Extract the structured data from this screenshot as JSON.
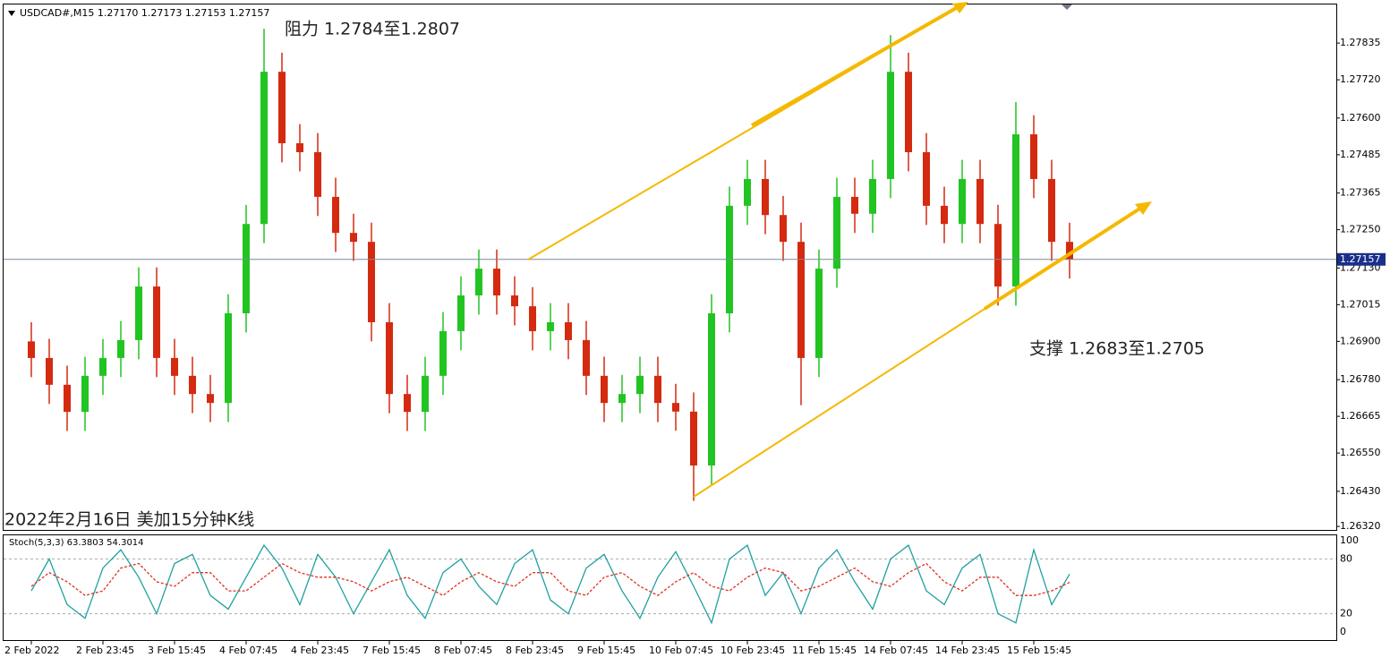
{
  "chart_data": [
    {
      "type": "candlestick",
      "title": "USDCAD#,M15  1.27170 1.27173 1.27153 1.27157",
      "annotations": [
        "阻力 1.2784至1.2807",
        "支撑 1.2683至1.2705",
        "2022年2月16日 美加15分钟K线"
      ],
      "up_color": "#22c422",
      "down_color": "#d42a10",
      "current_price": {
        "value": 1.27157,
        "label": "1.27157"
      },
      "categories": [
        "2 Feb 2022",
        null,
        null,
        null,
        "2 Feb 23:45",
        null,
        null,
        null,
        "3 Feb 15:45",
        null,
        null,
        null,
        "4 Feb 07:45",
        null,
        null,
        null,
        "4 Feb 23:45",
        null,
        null,
        null,
        "7 Feb 15:45",
        null,
        null,
        null,
        "8 Feb 07:45",
        null,
        null,
        null,
        "8 Feb 23:45",
        null,
        null,
        null,
        "9 Feb 15:45",
        null,
        null,
        null,
        "10 Feb 07:45",
        null,
        null,
        null,
        "10 Feb 23:45",
        null,
        null,
        null,
        "11 Feb 15:45",
        null,
        null,
        null,
        "14 Feb 07:45",
        null,
        null,
        null,
        "14 Feb 23:45",
        null,
        null,
        null,
        "15 Feb 15:45",
        null,
        null
      ],
      "open": [
        1.269,
        1.26848,
        1.26764,
        1.26679,
        1.26792,
        1.26848,
        1.26904,
        1.27072,
        1.26848,
        1.26792,
        1.26735,
        1.26707,
        1.26988,
        1.27268,
        1.27745,
        1.27521,
        1.27493,
        1.27353,
        1.2724,
        1.27212,
        1.2696,
        1.26735,
        1.26679,
        1.26792,
        1.26932,
        1.27044,
        1.27128,
        1.27044,
        1.2701,
        1.26932,
        1.2696,
        1.26904,
        1.26792,
        1.26707,
        1.26735,
        1.26792,
        1.26707,
        1.2668,
        1.26511,
        1.26988,
        1.27325,
        1.27409,
        1.27296,
        1.27212,
        1.26848,
        1.27128,
        1.27353,
        1.273,
        1.27409,
        1.27745,
        1.27493,
        1.27325,
        1.27268,
        1.27409,
        1.27268,
        1.27072,
        1.27549,
        1.27409,
        1.27212
      ],
      "high": [
        1.2696,
        1.26908,
        1.26824,
        1.26852,
        1.26908,
        1.26964,
        1.27132,
        1.27132,
        1.26908,
        1.26852,
        1.26795,
        1.27048,
        1.27328,
        1.2788,
        1.27805,
        1.27581,
        1.27553,
        1.27413,
        1.273,
        1.27272,
        1.2702,
        1.26795,
        1.26852,
        1.26992,
        1.27104,
        1.27188,
        1.27188,
        1.27104,
        1.2707,
        1.2702,
        1.2702,
        1.26964,
        1.26852,
        1.26795,
        1.26852,
        1.26852,
        1.26767,
        1.2674,
        1.27048,
        1.27385,
        1.27469,
        1.27469,
        1.27356,
        1.27272,
        1.27188,
        1.27413,
        1.27413,
        1.27469,
        1.2786,
        1.27805,
        1.27553,
        1.27385,
        1.27469,
        1.27469,
        1.27328,
        1.2765,
        1.27609,
        1.27469,
        1.27272
      ],
      "low": [
        1.26788,
        1.26704,
        1.26619,
        1.26619,
        1.26732,
        1.26788,
        1.26844,
        1.26788,
        1.26732,
        1.26675,
        1.26647,
        1.26647,
        1.26928,
        1.27208,
        1.27461,
        1.27433,
        1.27293,
        1.2718,
        1.27152,
        1.269,
        1.26675,
        1.26619,
        1.26619,
        1.26732,
        1.26872,
        1.26984,
        1.26984,
        1.2695,
        1.26872,
        1.26872,
        1.26844,
        1.26732,
        1.26647,
        1.26647,
        1.26675,
        1.26647,
        1.2662,
        1.264,
        1.26451,
        1.26928,
        1.27265,
        1.27236,
        1.27152,
        1.267,
        1.26788,
        1.27068,
        1.2724,
        1.2724,
        1.27349,
        1.27433,
        1.27265,
        1.27208,
        1.27208,
        1.27208,
        1.27012,
        1.27012,
        1.27349,
        1.27152,
        1.27097
      ],
      "close": [
        1.26848,
        1.26764,
        1.26679,
        1.26792,
        1.26848,
        1.26904,
        1.27072,
        1.26848,
        1.26792,
        1.26735,
        1.26707,
        1.26988,
        1.27268,
        1.27745,
        1.27521,
        1.27493,
        1.27353,
        1.2724,
        1.27212,
        1.2696,
        1.26735,
        1.26679,
        1.26792,
        1.26932,
        1.27044,
        1.27128,
        1.27044,
        1.2701,
        1.26932,
        1.2696,
        1.26904,
        1.26792,
        1.26707,
        1.26735,
        1.26792,
        1.26707,
        1.2668,
        1.26511,
        1.26988,
        1.27325,
        1.27409,
        1.27296,
        1.27212,
        1.26848,
        1.27128,
        1.27353,
        1.273,
        1.27409,
        1.27745,
        1.27493,
        1.27325,
        1.27268,
        1.27409,
        1.27268,
        1.27072,
        1.27549,
        1.27409,
        1.27212,
        1.27157
      ],
      "ylim": [
        1.26309,
        1.27956
      ],
      "yticks": [
        1.27835,
        {
          "value": 1.2772,
          "label": "1.27720"
        },
        {
          "value": 1.276,
          "label": "1.27600"
        },
        1.27485,
        1.27365,
        {
          "value": 1.2725,
          "label": "1.27250"
        },
        {
          "value": 1.2713,
          "label": "1.27130"
        },
        1.27015,
        {
          "value": 1.269,
          "label": "1.26900"
        },
        {
          "value": 1.2678,
          "label": "1.26780"
        },
        1.26665,
        {
          "value": 1.2655,
          "label": "1.26550"
        },
        {
          "value": 1.2643,
          "label": "1.26430"
        },
        {
          "value": 1.2632,
          "label": "1.26320"
        }
      ]
    },
    {
      "type": "line",
      "title": "Stoch(5,3,3) 63.3803 54.3014",
      "series": [
        {
          "color": "#20a0a0",
          "values": [
            45,
            80,
            30,
            15,
            70,
            90,
            60,
            20,
            75,
            85,
            40,
            25,
            60,
            95,
            70,
            30,
            85,
            60,
            20,
            55,
            90,
            40,
            15,
            65,
            80,
            50,
            30,
            75,
            90,
            35,
            20,
            70,
            85,
            45,
            15,
            60,
            88,
            50,
            10,
            80,
            95,
            40,
            65,
            20,
            70,
            90,
            55,
            25,
            80,
            95,
            45,
            30,
            70,
            85,
            20,
            10,
            90,
            30,
            63.3803
          ]
        },
        {
          "color": "#e03020",
          "dashed": true,
          "values": [
            50,
            65,
            55,
            40,
            45,
            70,
            75,
            55,
            50,
            65,
            65,
            45,
            45,
            60,
            75,
            65,
            60,
            60,
            55,
            45,
            55,
            60,
            50,
            40,
            55,
            65,
            55,
            50,
            65,
            65,
            45,
            40,
            60,
            65,
            50,
            40,
            55,
            65,
            50,
            45,
            60,
            70,
            65,
            45,
            50,
            60,
            70,
            55,
            50,
            65,
            75,
            55,
            45,
            60,
            60,
            40,
            40,
            45,
            54.3014
          ]
        }
      ],
      "ylim": [
        0,
        100
      ],
      "yticks": [
        100,
        80,
        20,
        0
      ],
      "grid_ticks": [
        80,
        20
      ]
    }
  ]
}
